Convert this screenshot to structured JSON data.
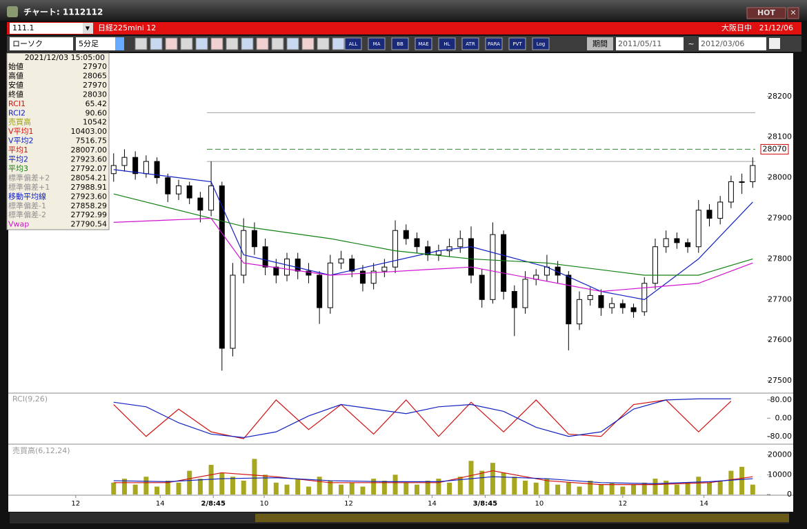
{
  "window": {
    "title": "チャート: 1112112",
    "hot": "HOT"
  },
  "toolbar": {
    "code": "111.1",
    "name": "日経225mini 12",
    "market": "大阪日中",
    "date": "21/12/06",
    "chart_kind": "ローソク",
    "interval": "5分足",
    "period": "期間",
    "from": "2011/05/11",
    "tilde": "~",
    "to": "2012/03/06",
    "buttons": [
      "ALL",
      "MA",
      "BB",
      "MAE",
      "HL",
      "ATR",
      "PARA",
      "PVT",
      "Log"
    ]
  },
  "info_panel": {
    "datetime": "2021/12/03  15:05:00",
    "rows": [
      {
        "label": "始値",
        "value": "27970",
        "color": "#000000"
      },
      {
        "label": "高値",
        "value": "28065",
        "color": "#000000"
      },
      {
        "label": "安値",
        "value": "27970",
        "color": "#000000"
      },
      {
        "label": "終値",
        "value": "28030",
        "color": "#000000"
      },
      {
        "label": "RCI1",
        "value": "65.42",
        "color": "#d01010"
      },
      {
        "label": "RCI2",
        "value": "90.60",
        "color": "#1020c0"
      },
      {
        "label": "売買高",
        "value": "10542",
        "color": "#a0a000"
      },
      {
        "label": "V平均1",
        "value": "10403.00",
        "color": "#d01010"
      },
      {
        "label": "V平均2",
        "value": "7516.75",
        "color": "#1020c0"
      },
      {
        "label": "平均1",
        "value": "28007.00",
        "color": "#d01010"
      },
      {
        "label": "平均2",
        "value": "27923.60",
        "color": "#1020c0"
      },
      {
        "label": "平均3",
        "value": "27792.07",
        "color": "#108010"
      },
      {
        "label": "標準偏差+2",
        "value": "28054.21",
        "color": "#909090"
      },
      {
        "label": "標準偏差+1",
        "value": "27988.91",
        "color": "#909090"
      },
      {
        "label": "移動平均線",
        "value": "27923.60",
        "color": "#1020c0"
      },
      {
        "label": "標準偏差-1",
        "value": "27858.29",
        "color": "#909090"
      },
      {
        "label": "標準偏差-2",
        "value": "27792.99",
        "color": "#909090"
      },
      {
        "label": "Vwap",
        "value": "27790.54",
        "color": "#d010d0"
      }
    ]
  },
  "chart_data": [
    {
      "type": "candlestick",
      "xlim": [
        -9.6,
        60
      ],
      "xticks": [
        {
          "value": -3.5,
          "label": "12"
        },
        {
          "value": 4.3,
          "label": "14"
        },
        {
          "value": 9.2,
          "label": "2/8:45"
        },
        {
          "value": 13.9,
          "label": "10"
        },
        {
          "value": 21.7,
          "label": "12"
        },
        {
          "value": 29.4,
          "label": "14"
        },
        {
          "value": 34.3,
          "label": "3/8:45"
        },
        {
          "value": 39.3,
          "label": "10"
        },
        {
          "value": 47,
          "label": "12"
        },
        {
          "value": 54.5,
          "label": "14"
        }
      ],
      "ylim": [
        27473,
        28305
      ],
      "yticks": [
        27500,
        27600,
        27700,
        27800,
        27900,
        28000,
        28100,
        28200
      ],
      "open": [
        28010,
        28030,
        28050,
        28010,
        28040,
        28000,
        27960,
        27980,
        27950,
        27920,
        27980,
        27580,
        27760,
        27870,
        27830,
        27780,
        27760,
        27800,
        27770,
        27760,
        27680,
        27790,
        27800,
        27770,
        27740,
        27770,
        27780,
        27870,
        27850,
        27830,
        27810,
        27820,
        27830,
        27850,
        27760,
        27700,
        27860,
        27720,
        27680,
        27750,
        27760,
        27780,
        27760,
        27640,
        27700,
        27710,
        27680,
        27690,
        27680,
        27670,
        27740,
        27830,
        27850,
        27840,
        27830,
        27920,
        27900,
        27940,
        27990,
        27990
      ],
      "high": [
        28060,
        28070,
        28065,
        28055,
        28050,
        28010,
        27995,
        27990,
        27965,
        28040,
        27990,
        27790,
        27900,
        27890,
        27850,
        27800,
        27815,
        27815,
        27790,
        27770,
        27810,
        27820,
        27810,
        27785,
        27790,
        27800,
        27895,
        27885,
        27865,
        27845,
        27835,
        27850,
        27870,
        27880,
        27775,
        27890,
        27870,
        27735,
        27770,
        27775,
        27810,
        27795,
        27770,
        27720,
        27730,
        27725,
        27705,
        27700,
        27690,
        27755,
        27850,
        27870,
        27865,
        27850,
        27945,
        27935,
        27955,
        28005,
        28010,
        28050
      ],
      "low": [
        27990,
        28015,
        27995,
        28000,
        27985,
        27940,
        27945,
        27935,
        27890,
        27905,
        27525,
        27560,
        27740,
        27810,
        27760,
        27740,
        27745,
        27750,
        27740,
        27640,
        27665,
        27775,
        27755,
        27720,
        27725,
        27755,
        27765,
        27835,
        27815,
        27795,
        27795,
        27805,
        27815,
        27740,
        27680,
        27690,
        27700,
        27610,
        27665,
        27735,
        27745,
        27740,
        27575,
        27625,
        27685,
        27660,
        27665,
        27665,
        27655,
        27660,
        27725,
        27815,
        27825,
        27815,
        27815,
        27880,
        27885,
        27925,
        27960,
        27975
      ],
      "close": [
        28030,
        28050,
        28010,
        28040,
        28000,
        27960,
        27980,
        27950,
        27920,
        27980,
        27580,
        27760,
        27870,
        27830,
        27780,
        27760,
        27800,
        27770,
        27760,
        27680,
        27790,
        27800,
        27770,
        27740,
        27770,
        27780,
        27870,
        27850,
        27830,
        27810,
        27820,
        27830,
        27850,
        27760,
        27700,
        27860,
        27720,
        27680,
        27750,
        27760,
        27780,
        27760,
        27640,
        27700,
        27710,
        27680,
        27690,
        27680,
        27670,
        27740,
        27830,
        27850,
        27840,
        27830,
        27920,
        27900,
        27940,
        27990,
        27990,
        28030
      ],
      "series": [
        {
          "name": "平均2",
          "color": "#1020c0",
          "x": [
            0,
            9,
            12,
            20,
            30,
            33,
            40,
            45,
            49,
            54,
            59
          ],
          "values": [
            28020,
            27990,
            27810,
            27760,
            27820,
            27830,
            27780,
            27720,
            27700,
            27800,
            27940
          ]
        },
        {
          "name": "平均3",
          "color": "#108010",
          "x": [
            0,
            9,
            12,
            20,
            26,
            33,
            40,
            49,
            54,
            59
          ],
          "values": [
            27960,
            27900,
            27880,
            27850,
            27820,
            27800,
            27790,
            27760,
            27760,
            27800
          ]
        },
        {
          "name": "Vwap",
          "color": "#d010d0",
          "x": [
            0,
            9,
            12,
            20,
            33,
            45,
            54,
            59
          ],
          "values": [
            27890,
            27900,
            27790,
            27760,
            27780,
            27720,
            27740,
            27790
          ]
        }
      ],
      "hlines": [
        {
          "value": 28070,
          "color": "#2a8a2a",
          "dashed": true
        },
        {
          "value": 28160,
          "color": "#a0a0a0",
          "dashed": false
        },
        {
          "value": 28040,
          "color": "#a0a0a0",
          "dashed": false
        }
      ]
    },
    {
      "type": "line",
      "title": "RCI(9,26)",
      "xlim": [
        -9.6,
        60
      ],
      "ylim": [
        -108,
        110
      ],
      "yticks": [
        {
          "value": 80,
          "label": "80.00"
        },
        {
          "value": 0,
          "label": "0.00"
        },
        {
          "value": -80,
          "label": "-80.00"
        }
      ],
      "series": [
        {
          "name": "RCI1",
          "color": "#d01010",
          "x": [
            0,
            3,
            6,
            9,
            12,
            15,
            18,
            21,
            24,
            27,
            30,
            33,
            36,
            39,
            42,
            45,
            48,
            51,
            54,
            57
          ],
          "values": [
            60,
            -80,
            40,
            -60,
            -90,
            80,
            -50,
            60,
            -70,
            80,
            -80,
            70,
            -60,
            80,
            -70,
            -80,
            60,
            80,
            -60,
            75
          ]
        },
        {
          "name": "RCI2",
          "color": "#1020c0",
          "x": [
            0,
            3,
            6,
            9,
            12,
            15,
            18,
            21,
            24,
            27,
            30,
            33,
            36,
            39,
            42,
            45,
            48,
            51,
            54,
            57
          ],
          "values": [
            70,
            50,
            -20,
            -70,
            -85,
            -60,
            10,
            60,
            40,
            20,
            50,
            60,
            30,
            -40,
            -80,
            -60,
            40,
            80,
            85,
            85
          ]
        }
      ]
    },
    {
      "type": "bar",
      "title": "売買高(6,12,24)",
      "xlim": [
        -9.6,
        60
      ],
      "ylim": [
        0,
        25100
      ],
      "yticks": [
        0,
        10000,
        20000
      ],
      "color": "#a8a820",
      "values": [
        6000,
        8000,
        5000,
        9000,
        4000,
        7000,
        6000,
        12000,
        8000,
        15000,
        11000,
        9000,
        7000,
        18000,
        10000,
        6000,
        5000,
        8000,
        4000,
        9000,
        7000,
        5000,
        6000,
        4000,
        8000,
        7000,
        10000,
        6000,
        5000,
        7000,
        8000,
        6000,
        9000,
        17000,
        12000,
        16000,
        11000,
        9000,
        7000,
        6000,
        8000,
        5000,
        6000,
        4000,
        7000,
        5000,
        6000,
        4000,
        5000,
        6000,
        8000,
        7000,
        5000,
        6000,
        9000,
        6000,
        7000,
        12000,
        14000,
        5000
      ],
      "series": [
        {
          "name": "V平均1",
          "color": "#d01010",
          "x": [
            0,
            5,
            10,
            15,
            20,
            25,
            30,
            35,
            40,
            45,
            50,
            55,
            59
          ],
          "values": [
            6000,
            6000,
            11000,
            9000,
            6000,
            6000,
            6000,
            12000,
            7000,
            5000,
            5000,
            6000,
            9000
          ]
        },
        {
          "name": "V平均2",
          "color": "#1020c0",
          "x": [
            0,
            5,
            10,
            15,
            20,
            25,
            30,
            35,
            40,
            45,
            50,
            55,
            59
          ],
          "values": [
            7000,
            6500,
            8000,
            8500,
            7000,
            6500,
            6500,
            9000,
            8000,
            6000,
            5500,
            6500,
            8000
          ]
        }
      ]
    }
  ]
}
